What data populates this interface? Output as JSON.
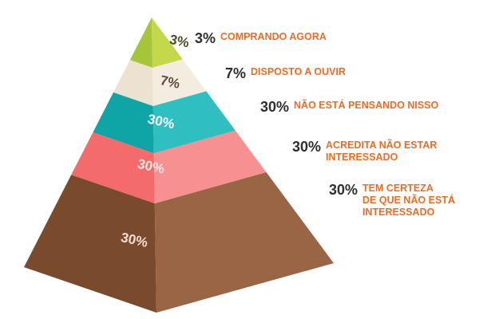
{
  "colors": {
    "accent_text": "#f06b1f",
    "pct_text": "#2e2e2e"
  },
  "tiers": [
    {
      "percent": "3%",
      "color_front": "#a6c63a",
      "color_side": "#c3d94a",
      "label_color": "#4d4d25"
    },
    {
      "percent": "7%",
      "color_front": "#ede1cf",
      "color_side": "#f5ece0",
      "label_color": "#5c4a3d"
    },
    {
      "percent": "30%",
      "color_front": "#0fa4a6",
      "color_side": "#2fbfc1",
      "label_color": "#ffffff"
    },
    {
      "percent": "30%",
      "color_front": "#f36b6b",
      "color_side": "#f79090",
      "label_color": "#ffe7e7"
    },
    {
      "percent": "30%",
      "color_front": "#7a4a2c",
      "color_side": "#9a6544",
      "label_color": "#f2ddd0"
    }
  ],
  "legend": [
    {
      "percent": "3%",
      "lines": [
        "COMPRANDO AGORA"
      ]
    },
    {
      "percent": "7%",
      "lines": [
        "DISPOSTO A OUVIR"
      ]
    },
    {
      "percent": "30%",
      "lines": [
        "NÃO ESTÁ PENSANDO NISSO"
      ]
    },
    {
      "percent": "30%",
      "lines": [
        "ACREDITA NÃO ESTAR",
        "INTERESSADO"
      ]
    },
    {
      "percent": "30%",
      "lines": [
        "TEM CERTEZA",
        "DE QUE NÃO ESTÁ",
        "INTERESSADO"
      ]
    }
  ]
}
